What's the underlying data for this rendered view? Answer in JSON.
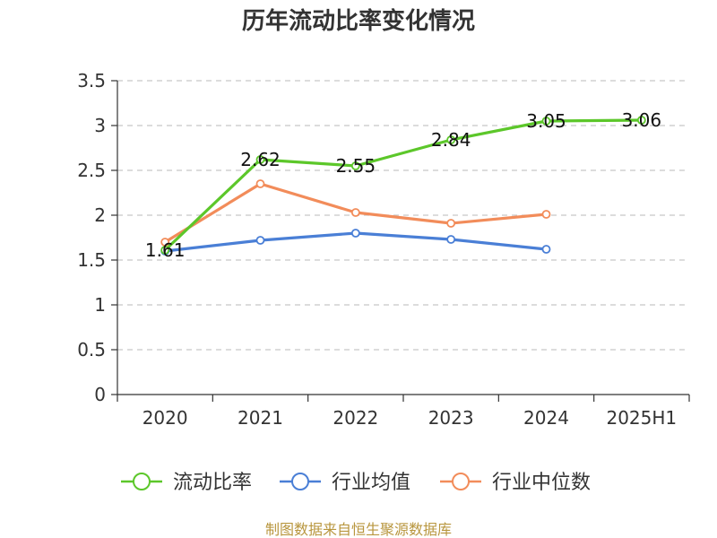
{
  "chart_data": {
    "type": "line",
    "title": "历年流动比率变化情况",
    "categories": [
      "2020",
      "2021",
      "2022",
      "2023",
      "2024",
      "2025H1"
    ],
    "ylim": [
      0,
      3.5
    ],
    "yticks": [
      "0",
      "0.5",
      "1",
      "1.5",
      "2",
      "2.5",
      "3",
      "3.5"
    ],
    "grid": true,
    "legend_position": "bottom",
    "series": [
      {
        "name": "流动比率",
        "color": "#5cc72a",
        "labeled": true,
        "values": [
          1.61,
          2.62,
          2.55,
          2.84,
          3.05,
          3.06
        ],
        "labels": [
          "1.61",
          "2.62",
          "2.55",
          "2.84",
          "3.05",
          "3.06"
        ]
      },
      {
        "name": "行业均值",
        "color": "#4a7fd6",
        "labeled": false,
        "values": [
          1.6,
          1.72,
          1.8,
          1.73,
          1.62,
          null
        ]
      },
      {
        "name": "行业中位数",
        "color": "#f28c5a",
        "labeled": false,
        "values": [
          1.7,
          2.35,
          2.03,
          1.91,
          2.01,
          null
        ]
      }
    ]
  },
  "source": "制图数据来自恒生聚源数据库"
}
